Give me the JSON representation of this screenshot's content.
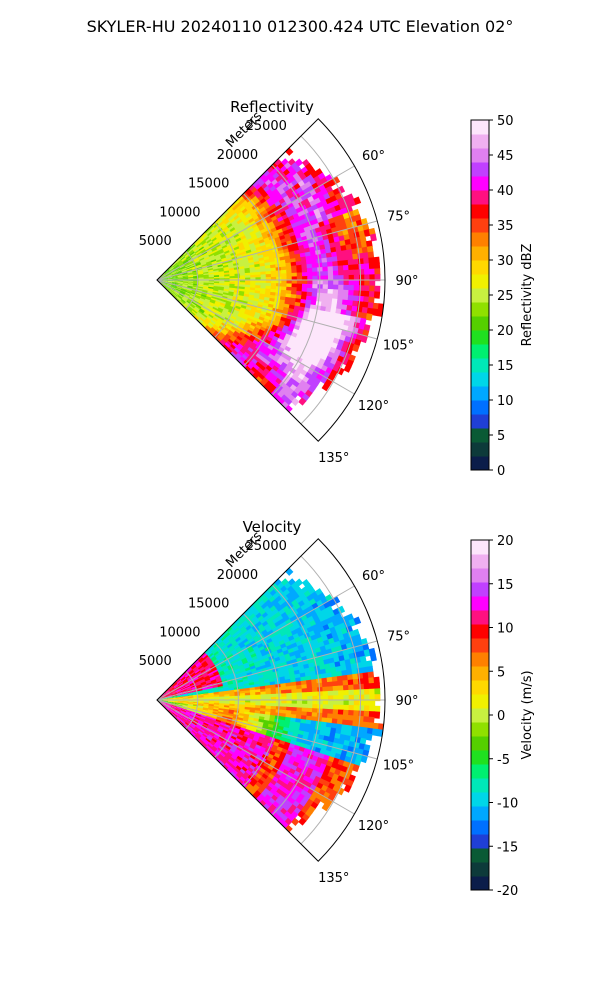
{
  "figure": {
    "suptitle": "SKYLER-HU  20240110  012300.424 UTC Elevation 02°"
  },
  "chart_data": [
    {
      "type": "heatmap",
      "subtype": "polar-sector-ppi",
      "title": "Reflectivity",
      "radial_label": "Meters",
      "radial_ticks": [
        "5000",
        "10000",
        "15000",
        "20000",
        "25000"
      ],
      "radial_tick_values": [
        5000,
        10000,
        15000,
        20000,
        25000
      ],
      "rmax": 28000,
      "azimuth_ticks": [
        "60°",
        "75°",
        "90°",
        "105°",
        "120°",
        "135°"
      ],
      "azimuth_tick_values": [
        60,
        75,
        90,
        105,
        120,
        135
      ],
      "azimuth_range": [
        45,
        135
      ],
      "grid": true,
      "colorbar": {
        "label": "Reflectivity dBZ",
        "min": 0,
        "max": 50,
        "ticks": [
          "0",
          "5",
          "10",
          "15",
          "20",
          "25",
          "30",
          "35",
          "40",
          "45",
          "50"
        ],
        "tick_values": [
          0,
          5,
          10,
          15,
          20,
          25,
          30,
          35,
          40,
          45,
          50
        ],
        "colors": [
          "#0b1d4a",
          "#0d3a3a",
          "#0a5a35",
          "#1f3fd6",
          "#0070ff",
          "#00a8ff",
          "#00d6e8",
          "#00e8b8",
          "#00f070",
          "#20e020",
          "#55d000",
          "#90e000",
          "#c8f040",
          "#f0f000",
          "#ffd800",
          "#ffb000",
          "#ff8000",
          "#ff4010",
          "#ff0000",
          "#ff1080",
          "#ff00ff",
          "#c040ff",
          "#e080f0",
          "#f0b0f0",
          "#fde6fb"
        ]
      }
    },
    {
      "type": "heatmap",
      "subtype": "polar-sector-ppi",
      "title": "Velocity",
      "radial_label": "Meters",
      "radial_ticks": [
        "5000",
        "10000",
        "15000",
        "20000",
        "25000"
      ],
      "radial_tick_values": [
        5000,
        10000,
        15000,
        20000,
        25000
      ],
      "rmax": 28000,
      "azimuth_ticks": [
        "60°",
        "75°",
        "90°",
        "105°",
        "120°",
        "135°"
      ],
      "azimuth_tick_values": [
        60,
        75,
        90,
        105,
        120,
        135
      ],
      "azimuth_range": [
        45,
        135
      ],
      "grid": true,
      "colorbar": {
        "label": "Velocity (m/s)",
        "min": -20,
        "max": 20,
        "ticks": [
          "-20",
          "-15",
          "-10",
          "-5",
          "0",
          "5",
          "10",
          "15",
          "20"
        ],
        "tick_values": [
          -20,
          -15,
          -10,
          -5,
          0,
          5,
          10,
          15,
          20
        ],
        "colors": [
          "#0b1d4a",
          "#0d3a3a",
          "#0a5a35",
          "#1f3fd6",
          "#0070ff",
          "#00a8ff",
          "#00d6e8",
          "#00e8b8",
          "#00f070",
          "#20e020",
          "#55d000",
          "#90e000",
          "#c8f040",
          "#f0f000",
          "#ffd800",
          "#ffb000",
          "#ff8000",
          "#ff4010",
          "#ff0000",
          "#ff1080",
          "#ff00ff",
          "#c040ff",
          "#e080f0",
          "#f0b0f0",
          "#fde6fb"
        ]
      }
    }
  ]
}
